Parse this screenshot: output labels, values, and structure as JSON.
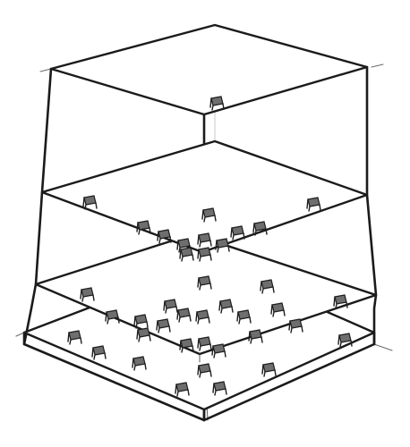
{
  "diagram": {
    "kind": "layered-isometric-sketch",
    "layers": [
      {
        "id": "top-lid",
        "furniture_count": 1
      },
      {
        "id": "level-3",
        "furniture_count": 12
      },
      {
        "id": "level-2",
        "furniture_count": 19
      },
      {
        "id": "base-floor",
        "furniture_count": 8
      }
    ],
    "colors": {
      "ink": "#1b1b1b",
      "pencil": "#3a3a3a",
      "shade": "#6e6e6e",
      "paper": "#ffffff"
    }
  }
}
